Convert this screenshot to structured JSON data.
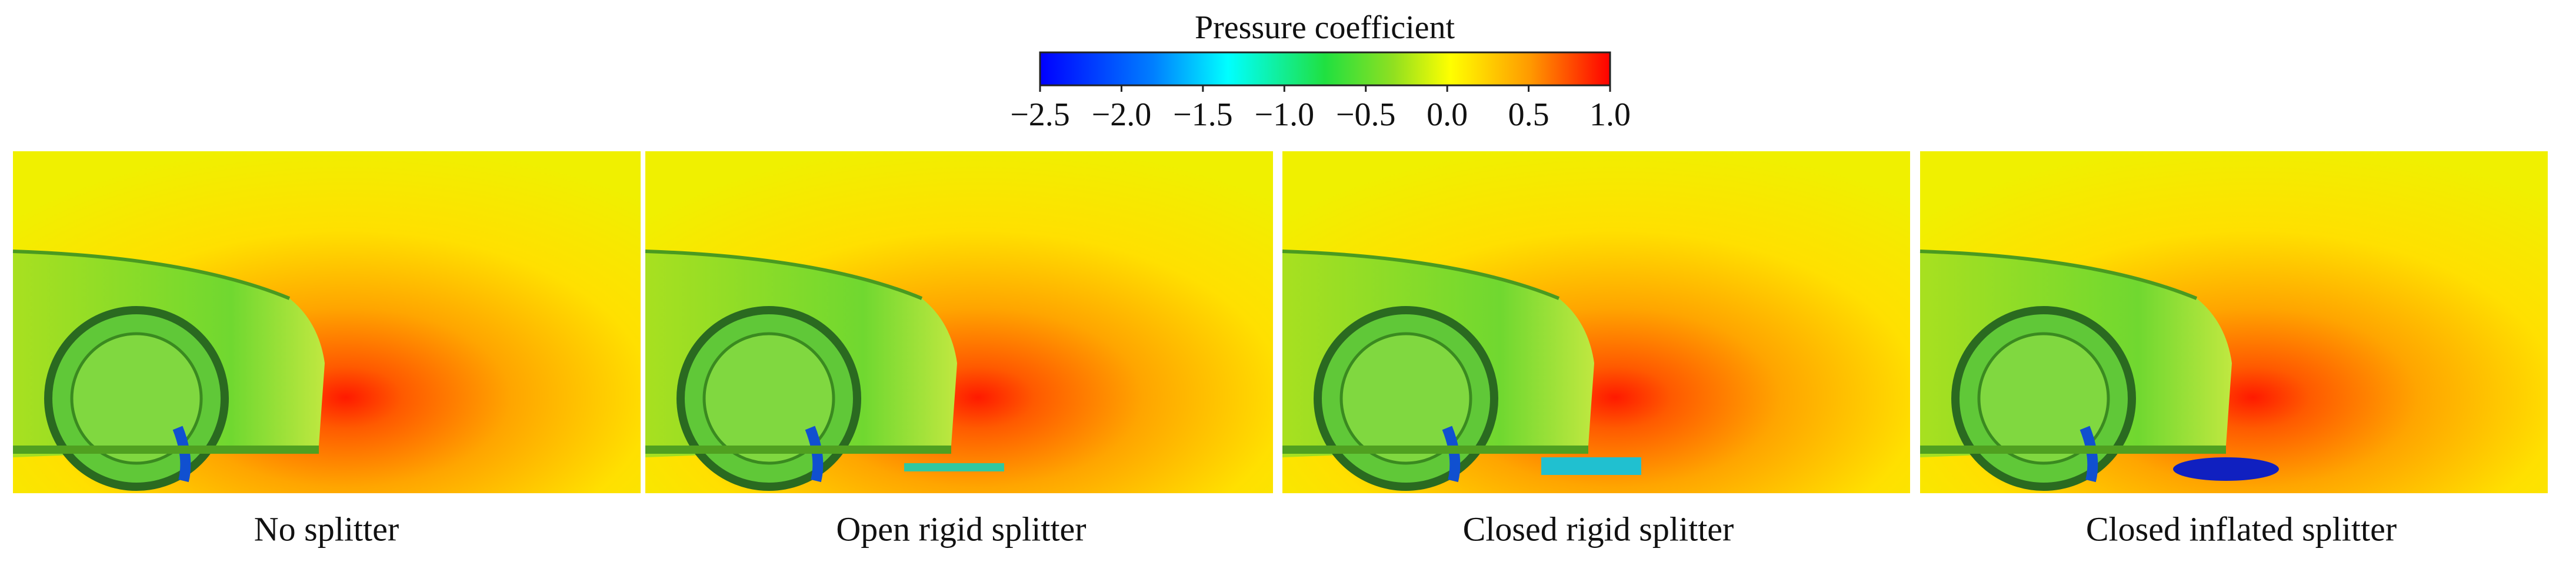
{
  "colorbar": {
    "title": "Pressure coefficient",
    "lim": [
      -2.5,
      1.0
    ],
    "ticks": [
      {
        "value": -2.5,
        "label": "−2.5"
      },
      {
        "value": -2.0,
        "label": "−2.0"
      },
      {
        "value": -1.5,
        "label": "−1.5"
      },
      {
        "value": -1.0,
        "label": "−1.0"
      },
      {
        "value": -0.5,
        "label": "−0.5"
      },
      {
        "value": 0.0,
        "label": "0.0"
      },
      {
        "value": 0.5,
        "label": "0.5"
      },
      {
        "value": 1.0,
        "label": "1.0"
      }
    ]
  },
  "panels": [
    {
      "caption": "No splitter"
    },
    {
      "caption": "Open rigid splitter"
    },
    {
      "caption": "Closed rigid splitter"
    },
    {
      "caption": "Closed inflated splitter"
    }
  ]
}
